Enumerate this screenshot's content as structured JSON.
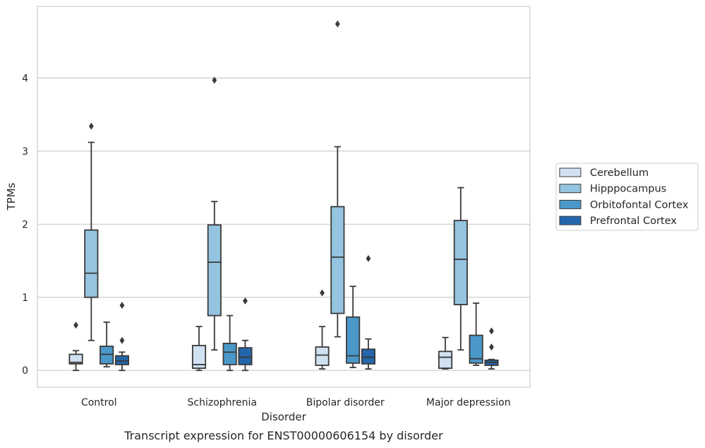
{
  "caption": "Transcript expression for ENST00000606154 by disorder",
  "chart_data": {
    "type": "box",
    "xlabel": "Disorder",
    "ylabel": "TPMs",
    "ylim": [
      -0.23,
      4.98
    ],
    "yticks": [
      0,
      1,
      2,
      3,
      4
    ],
    "grid": "horizontal",
    "legend_position": "right",
    "categories": [
      "Control",
      "Schizophrenia",
      "Bipolar disorder",
      "Major depression"
    ],
    "series": [
      {
        "name": "Cerebellum",
        "color": "#d0e1f2",
        "boxes": [
          {
            "whislo": 0.0,
            "q1": 0.09,
            "med": 0.11,
            "q3": 0.22,
            "whishi": 0.27,
            "fliers": [
              0.62
            ]
          },
          {
            "whislo": 0.0,
            "q1": 0.03,
            "med": 0.08,
            "q3": 0.34,
            "whishi": 0.6,
            "fliers": []
          },
          {
            "whislo": 0.02,
            "q1": 0.07,
            "med": 0.21,
            "q3": 0.32,
            "whishi": 0.6,
            "fliers": [
              1.06
            ]
          },
          {
            "whislo": 0.02,
            "q1": 0.03,
            "med": 0.18,
            "q3": 0.26,
            "whishi": 0.45,
            "fliers": []
          }
        ]
      },
      {
        "name": "Hipppocampus",
        "color": "#94c4df",
        "boxes": [
          {
            "whislo": 0.41,
            "q1": 1.0,
            "med": 1.33,
            "q3": 1.92,
            "whishi": 3.12,
            "fliers": [
              3.34
            ]
          },
          {
            "whislo": 0.28,
            "q1": 0.75,
            "med": 1.48,
            "q3": 1.99,
            "whishi": 2.31,
            "fliers": [
              3.97
            ]
          },
          {
            "whislo": 0.46,
            "q1": 0.78,
            "med": 1.55,
            "q3": 2.24,
            "whishi": 3.06,
            "fliers": [
              4.74
            ]
          },
          {
            "whislo": 0.28,
            "q1": 0.9,
            "med": 1.52,
            "q3": 2.05,
            "whishi": 2.5,
            "fliers": []
          }
        ]
      },
      {
        "name": "Orbitofontal Cortex",
        "color": "#4a98c9",
        "boxes": [
          {
            "whislo": 0.05,
            "q1": 0.09,
            "med": 0.22,
            "q3": 0.33,
            "whishi": 0.66,
            "fliers": []
          },
          {
            "whislo": 0.0,
            "q1": 0.08,
            "med": 0.25,
            "q3": 0.37,
            "whishi": 0.75,
            "fliers": []
          },
          {
            "whislo": 0.04,
            "q1": 0.1,
            "med": 0.2,
            "q3": 0.73,
            "whishi": 1.15,
            "fliers": []
          },
          {
            "whislo": 0.07,
            "q1": 0.1,
            "med": 0.16,
            "q3": 0.48,
            "whishi": 0.92,
            "fliers": []
          }
        ]
      },
      {
        "name": "Prefrontal Cortex",
        "color": "#2366ab",
        "boxes": [
          {
            "whislo": 0.0,
            "q1": 0.08,
            "med": 0.13,
            "q3": 0.2,
            "whishi": 0.25,
            "fliers": [
              0.89,
              0.41
            ]
          },
          {
            "whislo": 0.0,
            "q1": 0.08,
            "med": 0.18,
            "q3": 0.31,
            "whishi": 0.41,
            "fliers": [
              0.95
            ]
          },
          {
            "whislo": 0.02,
            "q1": 0.09,
            "med": 0.18,
            "q3": 0.29,
            "whishi": 0.43,
            "fliers": [
              1.53
            ]
          },
          {
            "whislo": 0.02,
            "q1": 0.07,
            "med": 0.11,
            "q3": 0.14,
            "whishi": 0.15,
            "fliers": [
              0.54,
              0.32
            ]
          }
        ]
      }
    ]
  }
}
